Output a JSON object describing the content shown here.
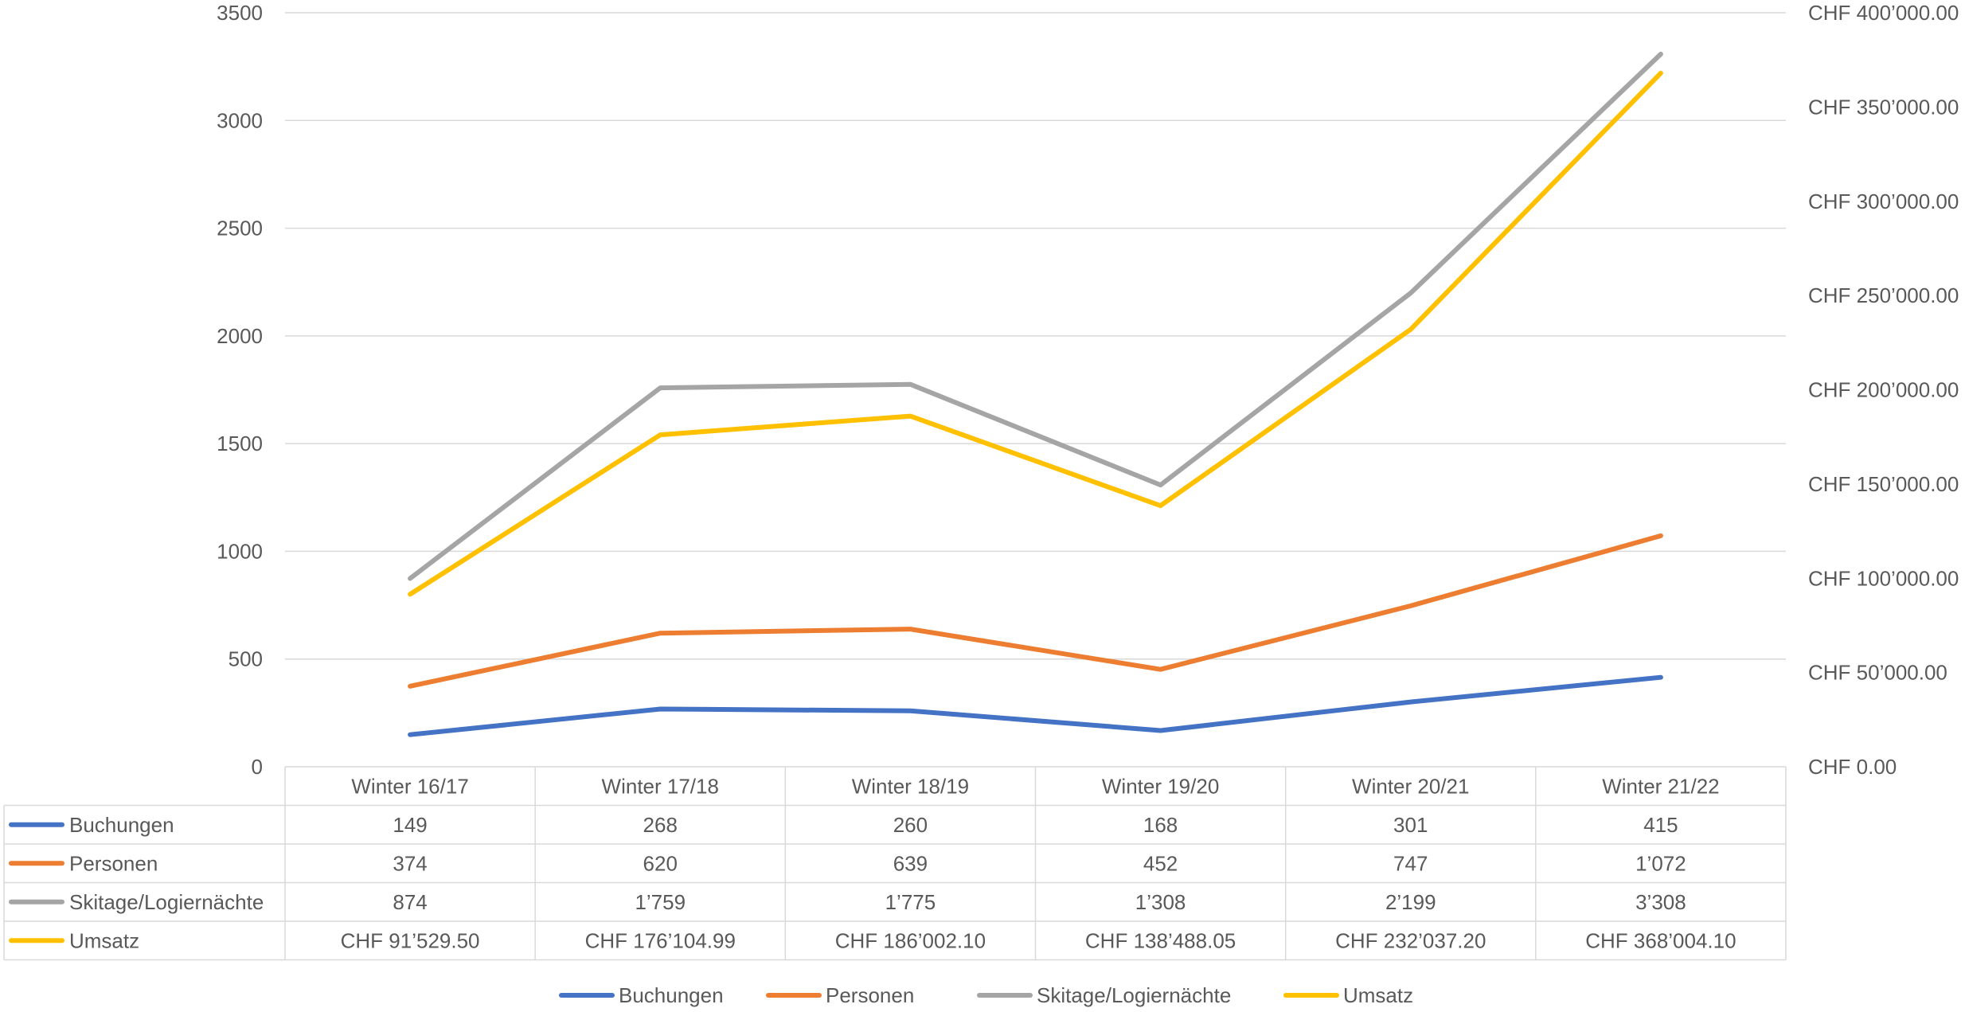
{
  "chart_data": {
    "type": "line",
    "categories": [
      "Winter 16/17",
      "Winter 17/18",
      "Winter 18/19",
      "Winter 19/20",
      "Winter 20/21",
      "Winter 21/22"
    ],
    "left_axis": {
      "ylim": [
        0,
        3500
      ],
      "ticks": [
        0,
        500,
        1000,
        1500,
        2000,
        2500,
        3000,
        3500
      ],
      "tick_labels": [
        "0",
        "500",
        "1000",
        "1500",
        "2000",
        "2500",
        "3000",
        "3500"
      ]
    },
    "right_axis": {
      "ylim": [
        0,
        400000
      ],
      "ticks": [
        0,
        50000,
        100000,
        150000,
        200000,
        250000,
        300000,
        350000,
        400000
      ],
      "tick_labels": [
        "CHF 0.00",
        "CHF 50’000.00",
        "CHF 100’000.00",
        "CHF 150’000.00",
        "CHF 200’000.00",
        "CHF 250’000.00",
        "CHF 300’000.00",
        "CHF 350’000.00",
        "CHF 400’000.00"
      ]
    },
    "series": [
      {
        "name": "Buchungen",
        "axis": "left",
        "color": "#4472C4",
        "values": [
          149,
          268,
          260,
          168,
          301,
          415
        ],
        "labels": [
          "149",
          "268",
          "260",
          "168",
          "301",
          "415"
        ]
      },
      {
        "name": "Personen",
        "axis": "left",
        "color": "#ED7D31",
        "values": [
          374,
          620,
          639,
          452,
          747,
          1072
        ],
        "labels": [
          "374",
          "620",
          "639",
          "452",
          "747",
          "1’072"
        ]
      },
      {
        "name": "Skitage/Logiernächte",
        "axis": "left",
        "color": "#A5A5A5",
        "values": [
          874,
          1759,
          1775,
          1308,
          2199,
          3308
        ],
        "labels": [
          "874",
          "1’759",
          "1’775",
          "1’308",
          "2’199",
          "3’308"
        ]
      },
      {
        "name": "Umsatz",
        "axis": "right",
        "color": "#FFC000",
        "values": [
          91529.5,
          176104.99,
          186002.1,
          138488.05,
          232037.2,
          368004.1
        ],
        "labels": [
          "CHF 91’529.50",
          "CHF 176’104.99",
          "CHF 186’002.10",
          "CHF 138’488.05",
          "CHF 232’037.20",
          "CHF 368’004.10"
        ]
      }
    ],
    "grid": true,
    "data_table": true,
    "legend_position": "bottom"
  }
}
